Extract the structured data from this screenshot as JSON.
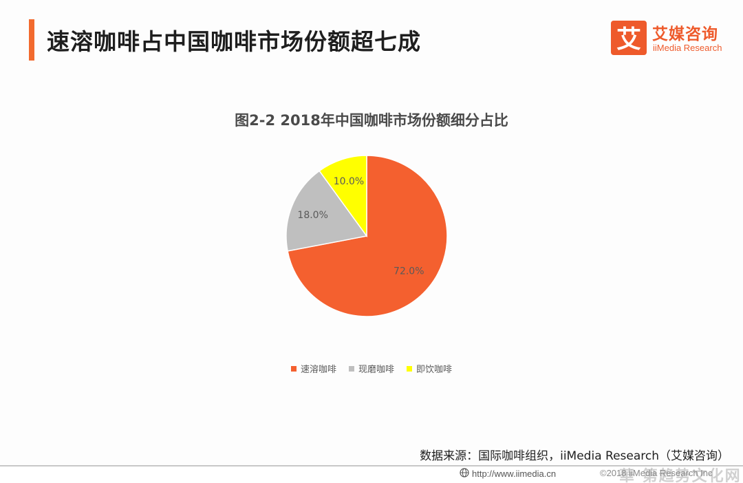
{
  "header": {
    "title": "速溶咖啡占中国咖啡市场份额超七成"
  },
  "logo": {
    "mark_char": "艾",
    "name": "艾媒咨询",
    "sub": "iiMedia Research"
  },
  "chart_data": {
    "type": "pie",
    "title": "图2-2 2018年中国咖啡市场份额细分占比",
    "categories": [
      "速溶咖啡",
      "现磨咖啡",
      "即饮咖啡"
    ],
    "values": [
      72.0,
      18.0,
      10.0
    ],
    "labels": [
      "72.0%",
      "18.0%",
      "10.0%"
    ],
    "colors": [
      "#f4602f",
      "#bfbfbf",
      "#ffff00"
    ],
    "legend_position": "bottom",
    "start": "12 o'clock, clockwise"
  },
  "source": {
    "text": "数据来源：国际咖啡组织，iiMedia Research（艾媒咨询）"
  },
  "footer": {
    "globe_icon": "globe-icon",
    "url": "http://www.iimedia.cn",
    "copyright": "©2018 iiMedia Research Inc",
    "watermark": "華 第趋势文化网"
  }
}
